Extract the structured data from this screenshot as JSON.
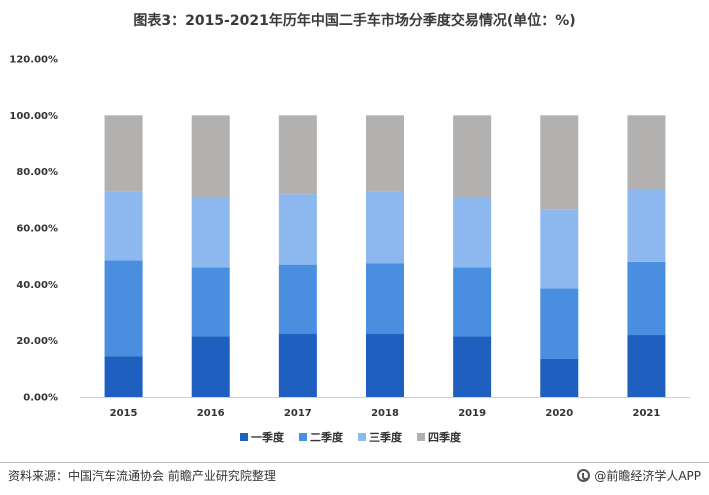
{
  "chart_data": {
    "type": "bar",
    "stacked": true,
    "title": "图表3：2015-2021年历年中国二手车市场分季度交易情况(单位：%)",
    "categories": [
      "2015",
      "2016",
      "2017",
      "2018",
      "2019",
      "2020",
      "2021"
    ],
    "series": [
      {
        "name": "一季度",
        "color": "#1f5fbf",
        "values": [
          14.5,
          21.5,
          22.5,
          22.5,
          21.5,
          13.5,
          22.0
        ]
      },
      {
        "name": "二季度",
        "color": "#4a8ee0",
        "values": [
          34.0,
          24.5,
          24.5,
          25.0,
          24.5,
          25.0,
          26.0
        ]
      },
      {
        "name": "三季度",
        "color": "#8db8ef",
        "values": [
          24.5,
          25.0,
          25.0,
          25.5,
          25.0,
          28.0,
          25.5
        ]
      },
      {
        "name": "四季度",
        "color": "#b3b0b0",
        "values": [
          27.0,
          29.0,
          28.0,
          27.0,
          29.0,
          33.5,
          26.5
        ]
      }
    ],
    "yticks": [
      "0.00%",
      "20.00%",
      "40.00%",
      "60.00%",
      "80.00%",
      "100.00%",
      "120.00%"
    ],
    "ylim": [
      0,
      120
    ],
    "legend_position": "bottom",
    "grid": false
  },
  "footer": {
    "source": "资料来源：中国汽车流通协会 前瞻产业研究院整理",
    "brand": "@前瞻经济学人APP"
  }
}
